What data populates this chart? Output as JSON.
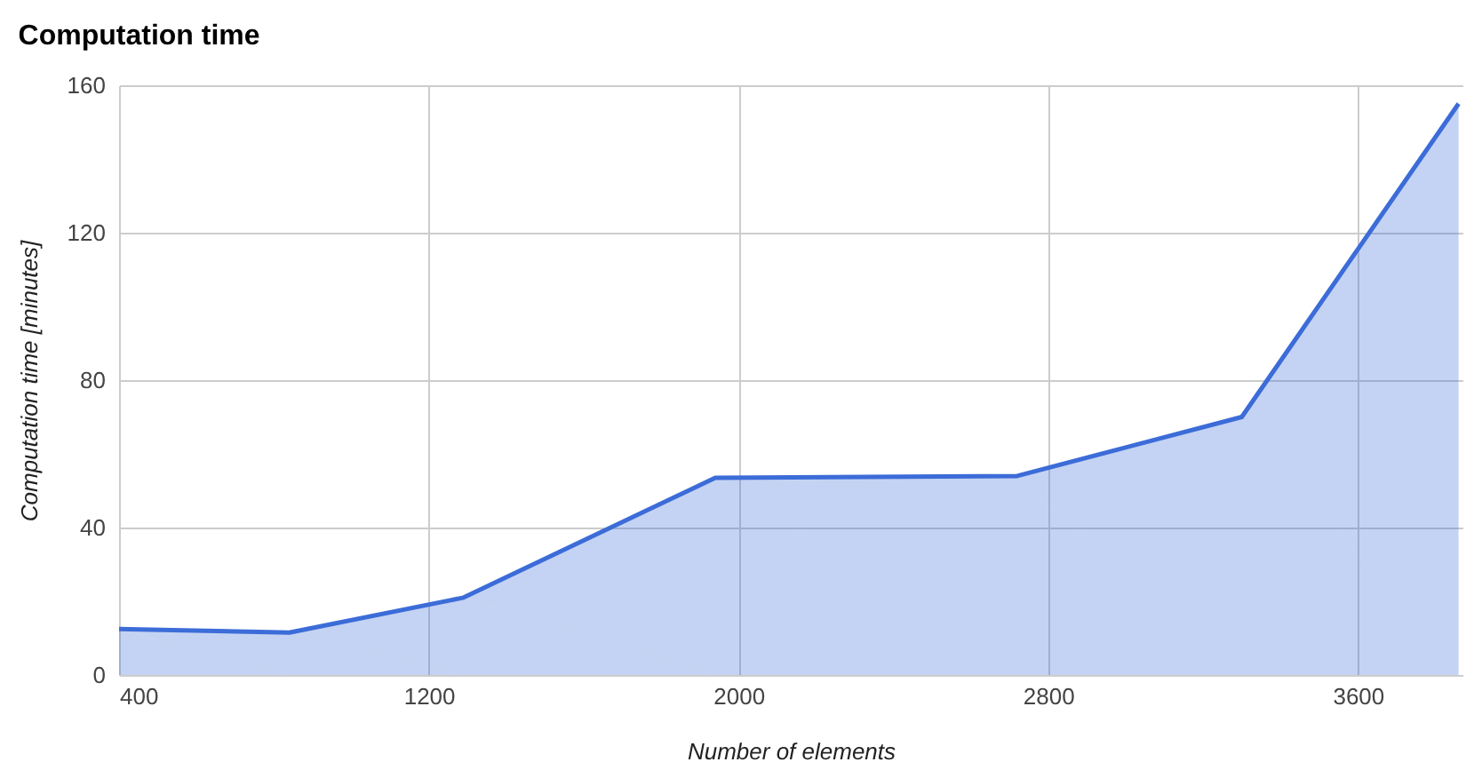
{
  "chart_data": {
    "type": "area",
    "title": "Computation time",
    "xlabel": "Number of elements",
    "ylabel": "Computation time [minutes]",
    "x": [
      400,
      840,
      1290,
      1940,
      2720,
      3300,
      3860
    ],
    "series": [
      {
        "color": "#3c6cd8",
        "values": [
          12.5,
          11.5,
          21,
          53.5,
          54,
          70,
          155
        ]
      }
    ],
    "xlim": [
      400,
      3870
    ],
    "xticks": [
      400,
      1200,
      2000,
      2800,
      3600
    ],
    "ylim": [
      0,
      160
    ],
    "yticks": [
      0,
      40,
      80,
      120,
      160
    ],
    "grid": true
  }
}
